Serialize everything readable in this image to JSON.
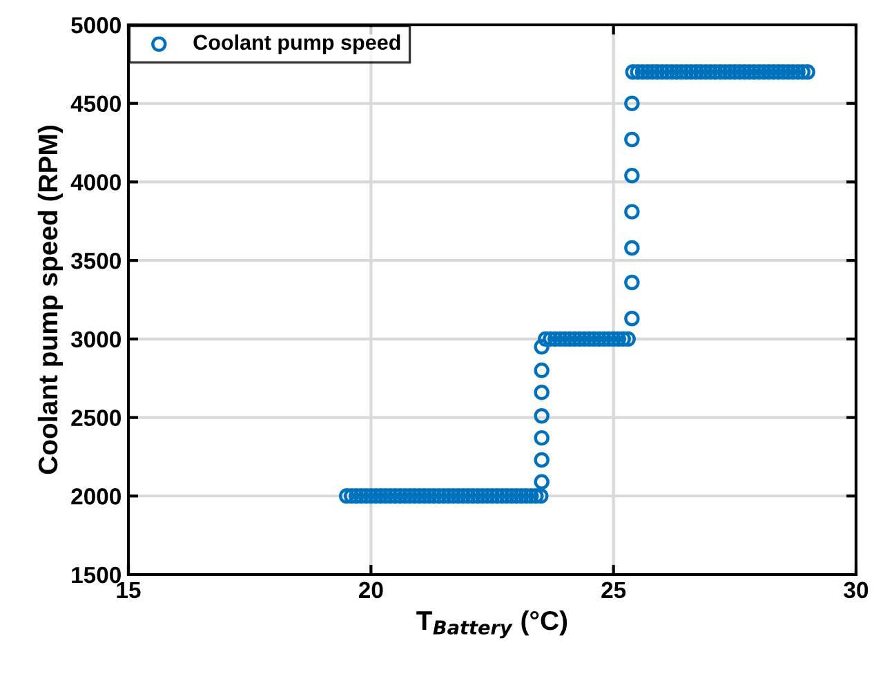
{
  "chart_data": {
    "type": "scatter",
    "xlabel": "T$_{Battery}$ (°C)",
    "ylabel": "Coolant pump speed (RPM)",
    "xlim": [
      15,
      30
    ],
    "xticks": [
      15,
      20,
      25,
      30
    ],
    "ylim": [
      1500,
      5000
    ],
    "yticks": [
      1500,
      2000,
      2500,
      3000,
      3500,
      4000,
      4500,
      5000
    ],
    "grid": true,
    "legend": "top left",
    "marker": "circle",
    "series": [
      {
        "name": "Coolant pump speed",
        "color": "#0072bd",
        "x": [
          19.5,
          19.6,
          19.7,
          19.8,
          19.9,
          20.0,
          20.1,
          20.2,
          20.3,
          20.4,
          20.5,
          20.6,
          20.7,
          20.8,
          20.9,
          21.0,
          21.1,
          21.2,
          21.3,
          21.4,
          21.5,
          21.6,
          21.7,
          21.8,
          21.9,
          22.0,
          22.1,
          22.2,
          22.3,
          22.4,
          22.5,
          22.6,
          22.7,
          22.8,
          22.9,
          23.0,
          23.1,
          23.2,
          23.3,
          23.4,
          23.5,
          23.52,
          23.52,
          23.52,
          23.52,
          23.52,
          23.52,
          23.52,
          23.6,
          23.7,
          23.8,
          23.9,
          24.0,
          24.1,
          24.2,
          24.3,
          24.4,
          24.5,
          24.6,
          24.7,
          24.8,
          24.9,
          25.0,
          25.1,
          25.2,
          25.3,
          25.38,
          25.38,
          25.38,
          25.38,
          25.38,
          25.38,
          25.38,
          25.4,
          25.5,
          25.6,
          25.7,
          25.8,
          25.9,
          26.0,
          26.1,
          26.2,
          26.3,
          26.4,
          26.5,
          26.6,
          26.7,
          26.8,
          26.9,
          27.0,
          27.1,
          27.2,
          27.3,
          27.4,
          27.5,
          27.6,
          27.7,
          27.8,
          27.9,
          28.0,
          28.1,
          28.2,
          28.3,
          28.4,
          28.5,
          28.6,
          28.7,
          28.8,
          28.9,
          29.0
        ],
        "values": [
          2000,
          2000,
          2000,
          2000,
          2000,
          2000,
          2000,
          2000,
          2000,
          2000,
          2000,
          2000,
          2000,
          2000,
          2000,
          2000,
          2000,
          2000,
          2000,
          2000,
          2000,
          2000,
          2000,
          2000,
          2000,
          2000,
          2000,
          2000,
          2000,
          2000,
          2000,
          2000,
          2000,
          2000,
          2000,
          2000,
          2000,
          2000,
          2000,
          2000,
          2000,
          2090,
          2230,
          2370,
          2510,
          2660,
          2800,
          2950,
          3000,
          3000,
          3000,
          3000,
          3000,
          3000,
          3000,
          3000,
          3000,
          3000,
          3000,
          3000,
          3000,
          3000,
          3000,
          3000,
          3000,
          3000,
          3130,
          3360,
          3580,
          3810,
          4040,
          4270,
          4500,
          4700,
          4700,
          4700,
          4700,
          4700,
          4700,
          4700,
          4700,
          4700,
          4700,
          4700,
          4700,
          4700,
          4700,
          4700,
          4700,
          4700,
          4700,
          4700,
          4700,
          4700,
          4700,
          4700,
          4700,
          4700,
          4700,
          4700,
          4700,
          4700,
          4700,
          4700,
          4700,
          4700,
          4700,
          4700,
          4700,
          4700
        ]
      }
    ]
  }
}
